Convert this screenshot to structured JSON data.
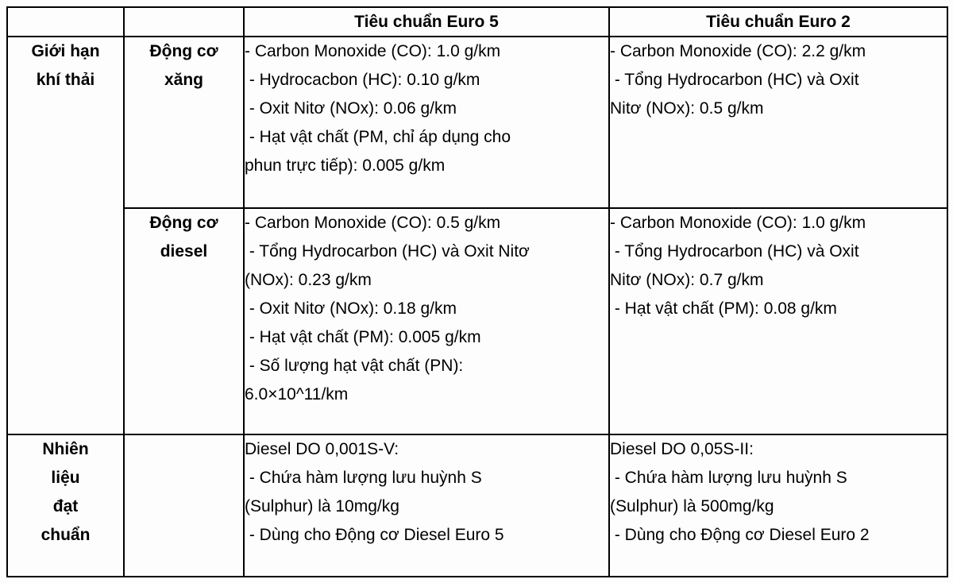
{
  "colors": {
    "background": "#fdfdfd",
    "border": "#000000",
    "text": "#000000"
  },
  "table": {
    "header": {
      "euro5": "Tiêu chuẩn Euro 5",
      "euro2": "Tiêu chuẩn Euro 2"
    },
    "emission_group": {
      "label": "Giới hạn khí thải",
      "label_lines": [
        "Giới hạn",
        "khí thải"
      ],
      "gasoline": {
        "label": "Động cơ xăng",
        "label_lines": [
          "Động cơ",
          "xăng"
        ],
        "euro5_lines": [
          "- Carbon Monoxide (CO): 1.0 g/km",
          " - Hydrocacbon (HC): 0.10 g/km",
          " - Oxit Nitơ (NOx): 0.06 g/km",
          " - Hạt vật chất (PM, chỉ áp dụng cho",
          "phun trực tiếp): 0.005 g/km"
        ],
        "euro2_lines": [
          "- Carbon Monoxide (CO): 2.2 g/km",
          " - Tổng Hydrocarbon (HC) và Oxit",
          "Nitơ (NOx): 0.5 g/km"
        ]
      },
      "diesel": {
        "label": "Động cơ diesel",
        "label_lines": [
          "Động cơ",
          "diesel"
        ],
        "euro5_lines": [
          "- Carbon Monoxide (CO): 0.5 g/km",
          " - Tổng Hydrocarbon (HC) và Oxit Nitơ",
          "(NOx): 0.23 g/km",
          " - Oxit Nitơ (NOx): 0.18 g/km",
          " - Hạt vật chất (PM): 0.005 g/km",
          " - Số lượng hạt vật chất (PN):",
          "6.0×10^11/km"
        ],
        "euro2_lines": [
          "- Carbon Monoxide (CO): 1.0 g/km",
          " - Tổng Hydrocarbon (HC) và Oxit",
          "Nitơ (NOx): 0.7 g/km",
          " - Hạt vật chất (PM): 0.08 g/km"
        ]
      }
    },
    "fuel_group": {
      "label": "Nhiên liệu đạt chuẩn",
      "label_lines": [
        "Nhiên",
        "liệu",
        "đạt",
        "chuẩn"
      ],
      "engine_label": "",
      "euro5_lines": [
        "Diesel DO 0,001S-V:",
        " - Chứa hàm lượng lưu huỳnh S",
        "(Sulphur) là 10mg/kg",
        " - Dùng cho Động cơ Diesel Euro 5"
      ],
      "euro2_lines": [
        "Diesel DO 0,05S-II:",
        " - Chứa hàm lượng lưu huỳnh S",
        "(Sulphur) là 500mg/kg",
        " - Dùng cho Động cơ Diesel Euro 2"
      ]
    }
  }
}
